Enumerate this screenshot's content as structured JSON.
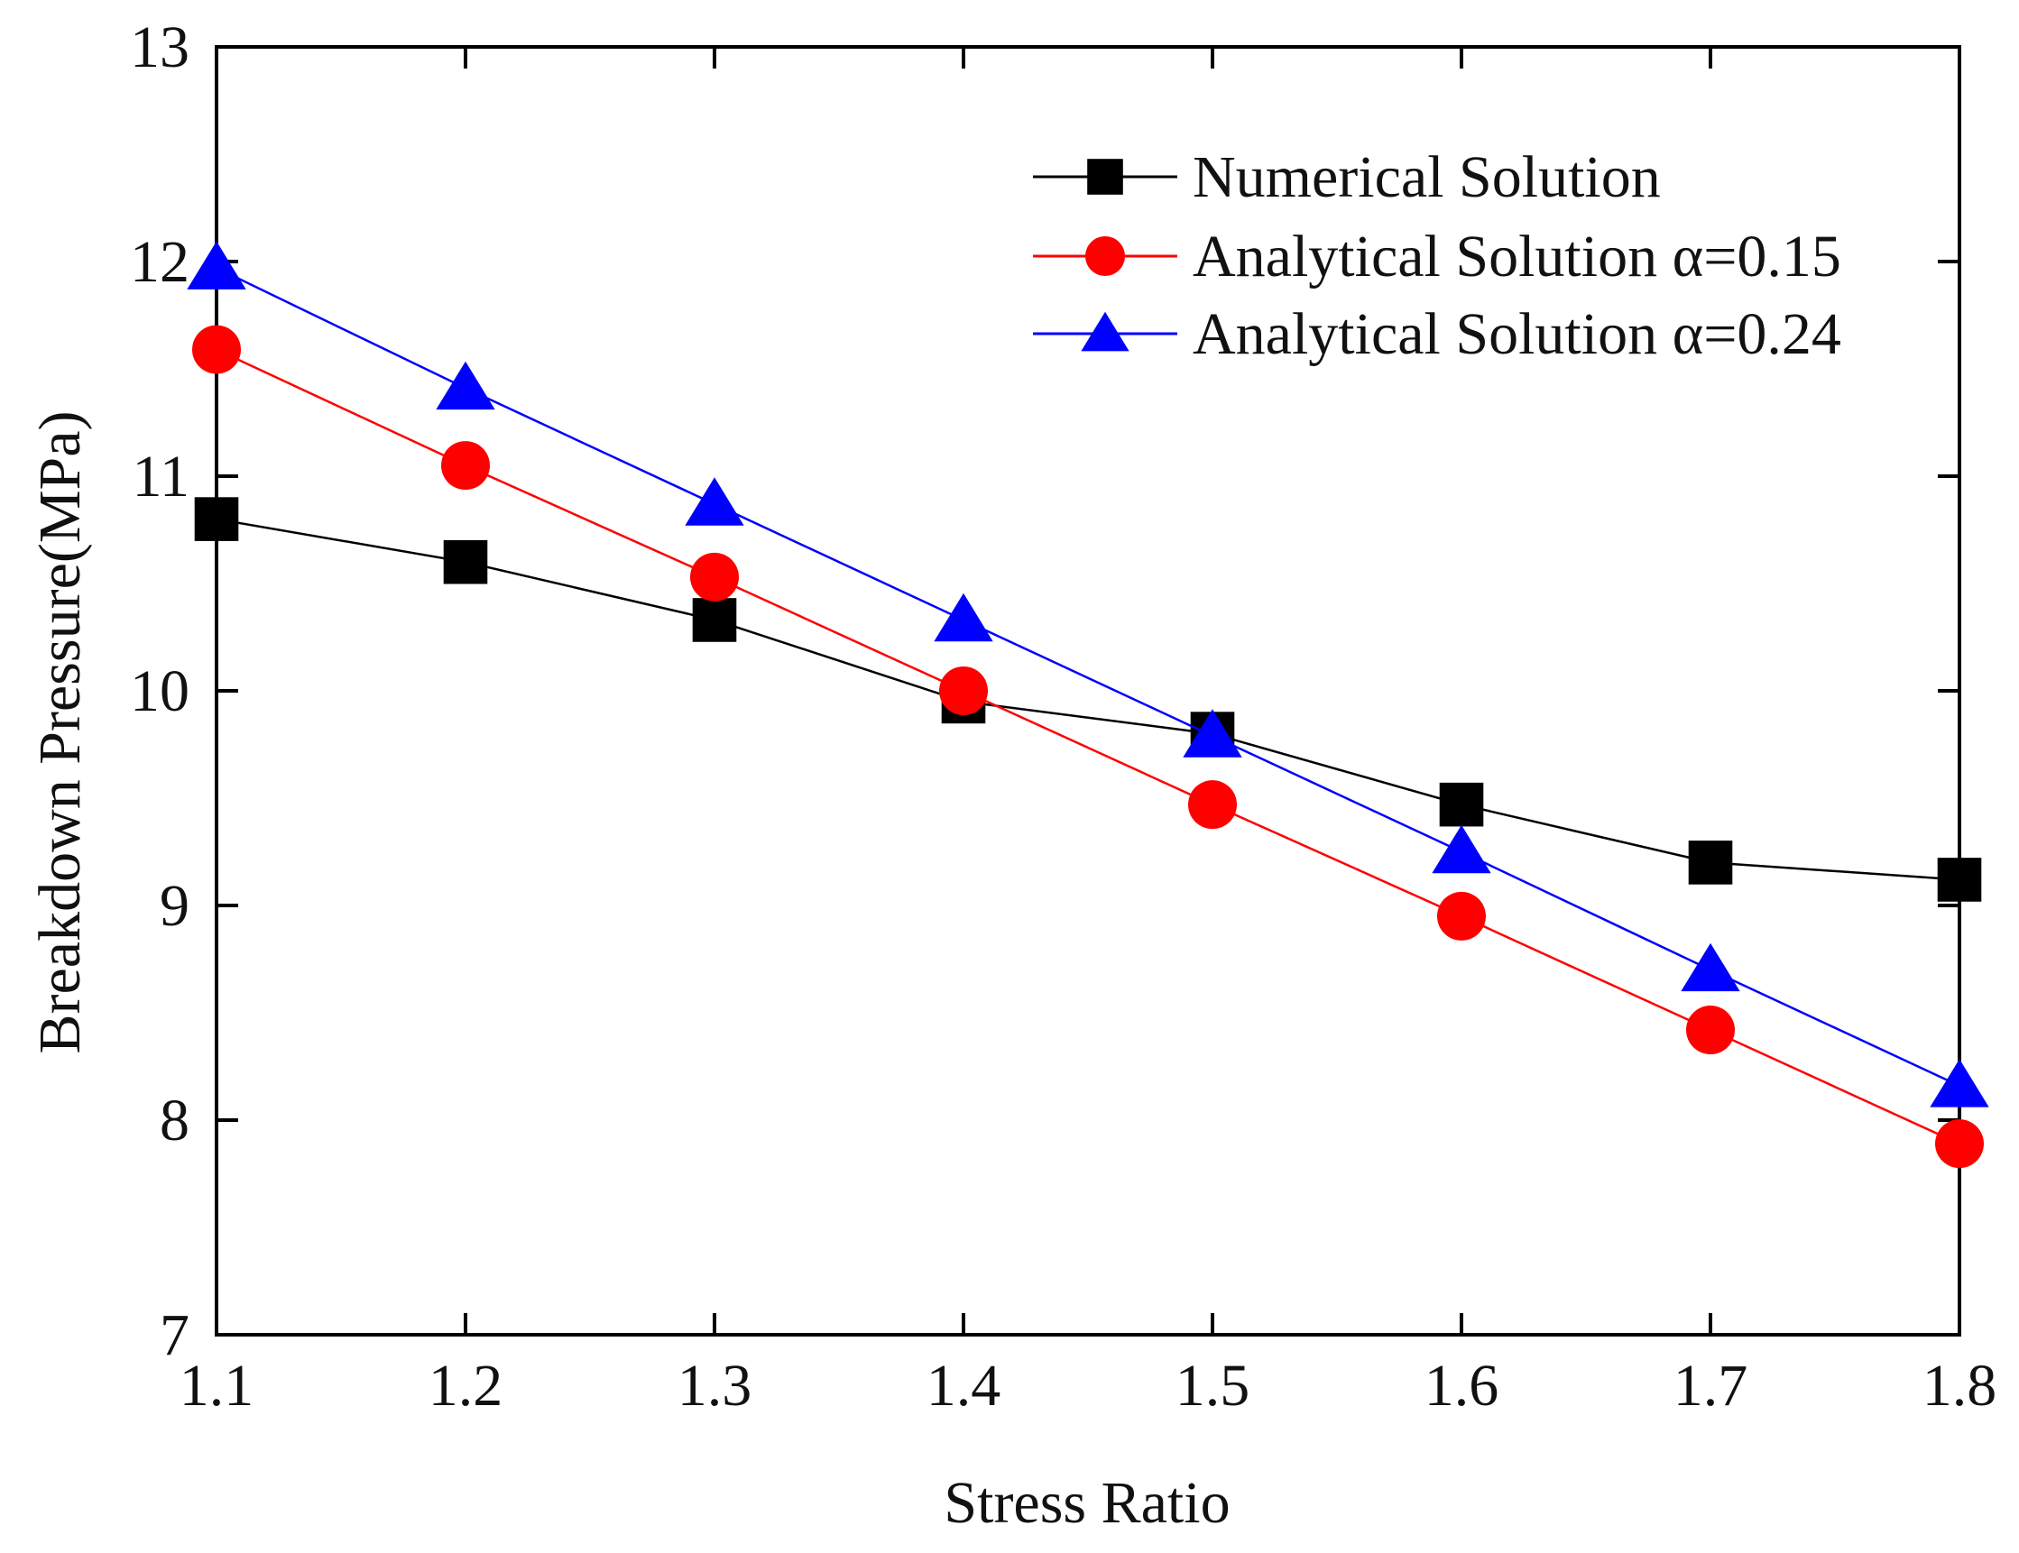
{
  "chart_data": {
    "type": "line",
    "title": "",
    "xlabel": "Stress Ratio",
    "ylabel": "Breakdown Pressure(MPa)",
    "xlim": [
      1.1,
      1.8
    ],
    "ylim": [
      7,
      13
    ],
    "grid": false,
    "legend_position": "top-right",
    "x": [
      1.1,
      1.2,
      1.3,
      1.4,
      1.5,
      1.6,
      1.7,
      1.8
    ],
    "x_tick_labels": [
      "1.1",
      "1.2",
      "1.3",
      "1.4",
      "1.5",
      "1.6",
      "1.7",
      "1.8"
    ],
    "y_ticks": [
      7,
      8,
      9,
      10,
      11,
      12,
      13
    ],
    "y_tick_labels": [
      "7",
      "8",
      "9",
      "10",
      "11",
      "12",
      "13"
    ],
    "series": [
      {
        "name": "Numerical Solution",
        "color": "#000000",
        "marker": "square",
        "values": [
          10.8,
          10.6,
          10.33,
          9.95,
          9.8,
          9.47,
          9.2,
          9.12
        ]
      },
      {
        "name": "Analytical Solution α=0.15",
        "color": "#ff0000",
        "marker": "circle",
        "values": [
          11.59,
          11.05,
          10.53,
          10.0,
          9.47,
          8.95,
          8.42,
          7.89
        ]
      },
      {
        "name": "Analytical Solution α=0.24",
        "color": "#0000ff",
        "marker": "triangle",
        "values": [
          11.97,
          11.41,
          10.87,
          10.33,
          9.79,
          9.25,
          8.7,
          8.16
        ]
      }
    ]
  }
}
